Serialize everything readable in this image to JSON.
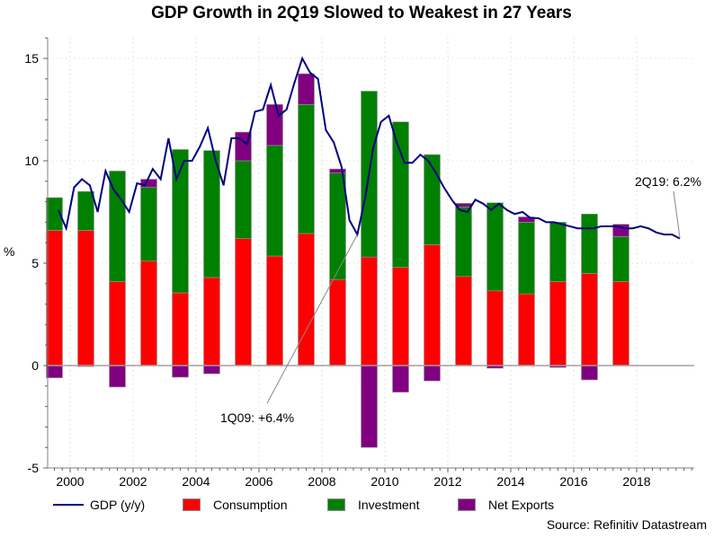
{
  "chart_data": {
    "type": "bar",
    "title": "GDP Growth in 2Q19 Slowed to Weakest in 27 Years",
    "xlabel": "",
    "ylabel": "%",
    "ylim": [
      -5,
      16
    ],
    "yticks": [
      -5,
      0,
      5,
      10,
      15
    ],
    "ytick_labels": [
      "-5",
      "0",
      "5",
      "10",
      "15"
    ],
    "xlim": [
      1999.25,
      2019.8
    ],
    "xticks": [
      2000,
      2002,
      2004,
      2006,
      2008,
      2010,
      2012,
      2014,
      2016,
      2018
    ],
    "xtick_labels": [
      "2000",
      "2002",
      "2004",
      "2006",
      "2008",
      "2010",
      "2012",
      "2014",
      "2016",
      "2018"
    ],
    "grid": true,
    "stacked_bars": {
      "categories": [
        "1999",
        "2000",
        "2001",
        "2002",
        "2003",
        "2004",
        "2005",
        "2006",
        "2007",
        "2008",
        "2009",
        "2010",
        "2011",
        "2012",
        "2013",
        "2014",
        "2015",
        "2016",
        "2017"
      ],
      "series": [
        {
          "name": "Consumption",
          "color": "#ff0000",
          "values": [
            6.6,
            6.6,
            4.1,
            5.1,
            3.55,
            4.3,
            6.2,
            5.35,
            6.45,
            4.2,
            5.3,
            4.8,
            5.9,
            4.35,
            3.65,
            3.5,
            4.1,
            4.5,
            4.1
          ]
        },
        {
          "name": "Investment",
          "color": "#008000",
          "values": [
            1.6,
            1.9,
            5.4,
            3.6,
            7.0,
            6.2,
            3.8,
            5.4,
            6.3,
            5.2,
            8.1,
            7.1,
            4.4,
            3.4,
            4.3,
            3.5,
            2.9,
            2.9,
            2.2
          ]
        },
        {
          "name": "Net Exports",
          "color": "#800080",
          "values": [
            -0.6,
            -0.05,
            -1.05,
            0.4,
            -0.57,
            -0.4,
            1.4,
            2.0,
            1.5,
            0.2,
            -4.0,
            -1.3,
            -0.75,
            0.17,
            -0.13,
            0.26,
            -0.09,
            -0.7,
            0.6
          ]
        }
      ]
    },
    "line": {
      "name": "GDP (y/y)",
      "color": "#000080",
      "start_quarter": "3Q99",
      "start_x": 1999.625,
      "step": 0.25,
      "values": [
        7.6,
        6.7,
        8.7,
        9.1,
        8.8,
        7.5,
        9.5,
        8.6,
        8.1,
        7.5,
        8.9,
        8.8,
        9.6,
        9.1,
        11.1,
        9.1,
        10.0,
        10.0,
        10.7,
        11.6,
        10.0,
        8.8,
        11.1,
        11.1,
        10.8,
        12.4,
        12.5,
        13.7,
        12.2,
        12.5,
        13.8,
        15.0,
        14.3,
        14.0,
        11.5,
        10.9,
        9.7,
        7.1,
        6.4,
        8.2,
        10.6,
        11.9,
        12.2,
        10.9,
        9.9,
        9.9,
        10.3,
        10.0,
        9.4,
        8.7,
        8.1,
        7.6,
        7.5,
        8.1,
        7.9,
        7.6,
        7.9,
        7.6,
        7.4,
        7.5,
        7.2,
        7.2,
        7.0,
        7.0,
        6.9,
        6.8,
        6.7,
        6.7,
        6.7,
        6.8,
        6.8,
        6.8,
        6.7,
        6.7,
        6.8,
        6.7,
        6.5,
        6.4,
        6.4,
        6.2
      ]
    },
    "annotations": [
      {
        "text": "1Q09: +6.4%",
        "point_index": 38,
        "value": 6.4
      },
      {
        "text": "2Q19: 6.2%",
        "point_index": 79,
        "value": 6.2
      }
    ],
    "legend": {
      "placement": "bottom",
      "entries": [
        "GDP (y/y)",
        "Consumption",
        "Investment",
        "Net Exports"
      ]
    },
    "source": "Source: Refinitiv Datastream"
  },
  "title": "GDP Growth in 2Q19 Slowed to Weakest in 27 Years",
  "ylabel": "%",
  "legend": {
    "gdp": "GDP (y/y)",
    "consumption": "Consumption",
    "investment": "Investment",
    "net_exports": "Net Exports"
  },
  "colors": {
    "gdp": "#000080",
    "consumption": "#ff0000",
    "investment": "#008000",
    "net_exports": "#800080"
  },
  "source": "Source: Refinitiv Datastream"
}
